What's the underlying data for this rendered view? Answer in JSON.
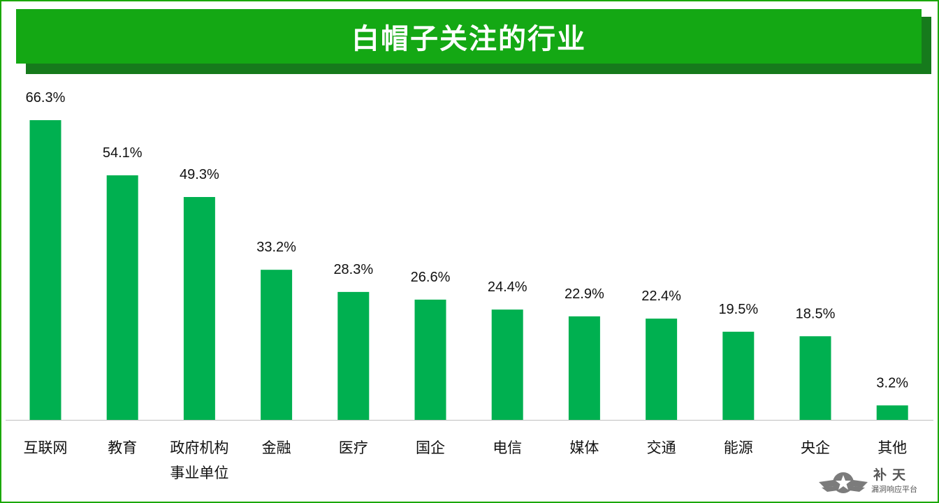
{
  "title": "白帽子关注的行业",
  "colors": {
    "bar": "#00b050",
    "banner": "#14a814",
    "banner_shadow": "#167a1c",
    "frame": "#1aa800"
  },
  "watermark": {
    "brand": "补天",
    "subtitle": "漏洞响应平台",
    "icon": "star-wings-logo"
  },
  "chart_data": {
    "type": "bar",
    "title": "白帽子关注的行业",
    "categories": [
      [
        "互联网"
      ],
      [
        "教育"
      ],
      [
        "政府机构",
        "事业单位"
      ],
      [
        "金融"
      ],
      [
        "医疗"
      ],
      [
        "国企"
      ],
      [
        "电信"
      ],
      [
        "媒体"
      ],
      [
        "交通"
      ],
      [
        "能源"
      ],
      [
        "央企"
      ],
      [
        "其他"
      ]
    ],
    "values": [
      66.3,
      54.1,
      49.3,
      33.2,
      28.3,
      26.6,
      24.4,
      22.9,
      22.4,
      19.5,
      18.5,
      3.2
    ],
    "value_labels": [
      "66.3%",
      "54.1%",
      "49.3%",
      "33.2%",
      "28.3%",
      "26.6%",
      "24.4%",
      "22.9%",
      "22.4%",
      "19.5%",
      "18.5%",
      "3.2%"
    ],
    "xlabel": "",
    "ylabel": "",
    "ylim": [
      0,
      66.3
    ],
    "grid": false,
    "legend": "none"
  }
}
